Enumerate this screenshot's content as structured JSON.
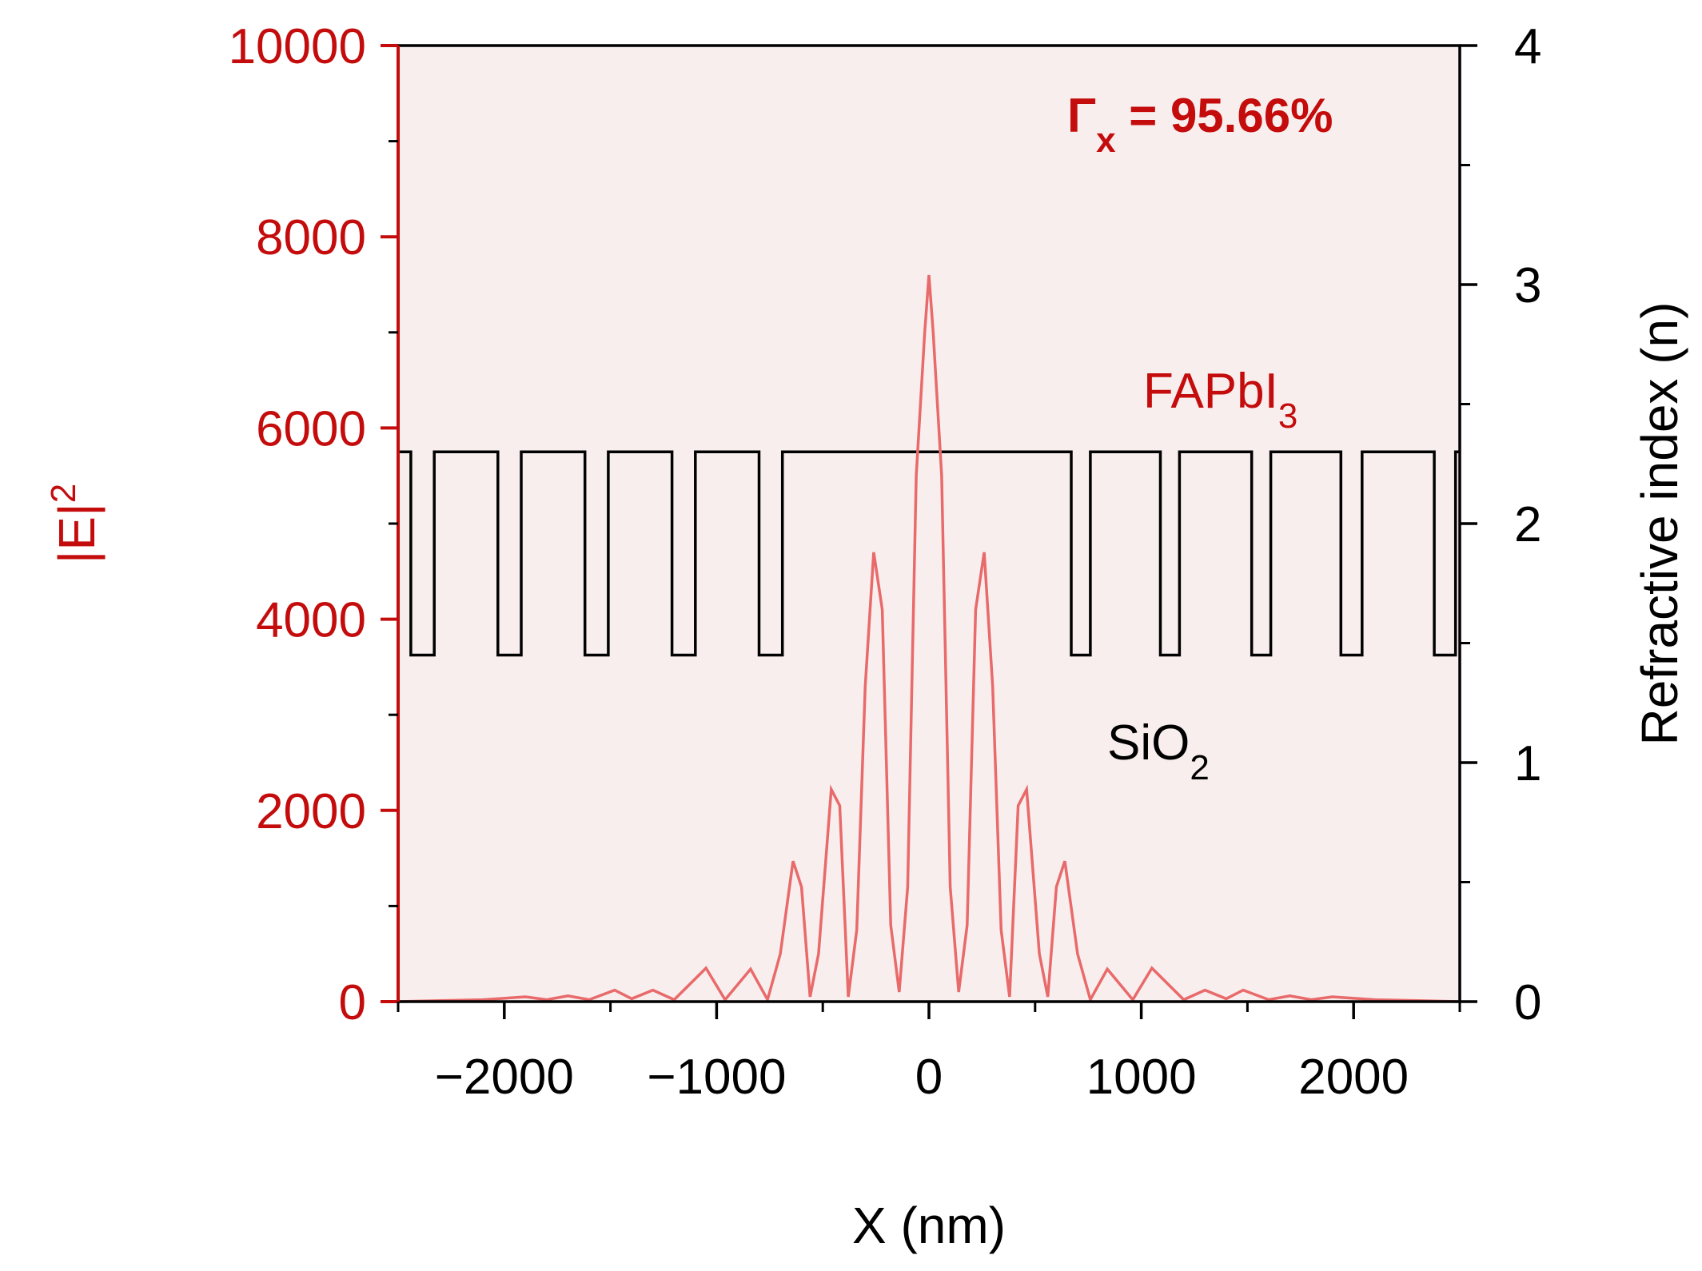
{
  "colors": {
    "left_axis": "#c40c0c",
    "field_curve": "#e86a6a",
    "index_curve": "#000000",
    "fill": "#f9eeee",
    "gamma_text": "#c40c0c"
  },
  "chart_data": {
    "type": "line",
    "xlabel": "X (nm)",
    "ylabel_left": {
      "main": "|E|",
      "sup": "2"
    },
    "ylabel_right": "Refractive index (n)",
    "xlim": [
      -2500,
      2500
    ],
    "ylim_left": [
      0,
      10000
    ],
    "ylim_right": [
      0,
      4
    ],
    "x_ticks": [
      -2000,
      -1000,
      0,
      1000,
      2000
    ],
    "x_tick_labels": [
      "−2000",
      "−1000",
      "0",
      "1000",
      "2000"
    ],
    "x_minor_ticks": [
      -2500,
      -1500,
      -500,
      500,
      1500,
      2500
    ],
    "y_left_ticks": [
      0,
      2000,
      4000,
      6000,
      8000,
      10000
    ],
    "y_left_tick_labels": [
      "0",
      "2000",
      "4000",
      "6000",
      "8000",
      "10000"
    ],
    "y_left_minor_ticks": [
      1000,
      3000,
      5000,
      7000,
      9000
    ],
    "y_right_ticks": [
      0,
      1,
      2,
      3,
      4
    ],
    "y_right_tick_labels": [
      "0",
      "1",
      "2",
      "3",
      "4"
    ],
    "y_right_minor_ticks": [
      0.5,
      1.5,
      2.5,
      3.5
    ],
    "annotations": {
      "gamma": {
        "symbol": "Γ",
        "sub": "x",
        "text": " = 95.66%"
      },
      "fapbi": {
        "main": "FAPbI",
        "sub": "3"
      },
      "sio2": {
        "main": "SiO",
        "sub": "2"
      }
    },
    "series": [
      {
        "axis": "right",
        "points": [
          [
            -2500,
            2.3
          ],
          [
            -2440,
            2.3
          ],
          [
            -2440,
            1.45
          ],
          [
            -2330,
            1.45
          ],
          [
            -2330,
            2.3
          ],
          [
            -2030,
            2.3
          ],
          [
            -2030,
            1.45
          ],
          [
            -1920,
            1.45
          ],
          [
            -1920,
            2.3
          ],
          [
            -1620,
            2.3
          ],
          [
            -1620,
            1.45
          ],
          [
            -1510,
            1.45
          ],
          [
            -1510,
            2.3
          ],
          [
            -1210,
            2.3
          ],
          [
            -1210,
            1.45
          ],
          [
            -1100,
            1.45
          ],
          [
            -1100,
            2.3
          ],
          [
            -800,
            2.3
          ],
          [
            -800,
            1.45
          ],
          [
            -690,
            1.45
          ],
          [
            -690,
            2.3
          ],
          [
            670,
            2.3
          ],
          [
            670,
            1.45
          ],
          [
            760,
            1.45
          ],
          [
            760,
            2.3
          ],
          [
            1090,
            2.3
          ],
          [
            1090,
            1.45
          ],
          [
            1180,
            1.45
          ],
          [
            1180,
            2.3
          ],
          [
            1520,
            2.3
          ],
          [
            1520,
            1.45
          ],
          [
            1610,
            1.45
          ],
          [
            1610,
            2.3
          ],
          [
            1940,
            2.3
          ],
          [
            1940,
            1.45
          ],
          [
            2040,
            1.45
          ],
          [
            2040,
            2.3
          ],
          [
            2380,
            2.3
          ],
          [
            2380,
            1.45
          ],
          [
            2480,
            1.45
          ],
          [
            2480,
            2.3
          ],
          [
            2500,
            2.3
          ]
        ]
      },
      {
        "axis": "left",
        "points": [
          [
            -2500,
            0
          ],
          [
            -2300,
            10
          ],
          [
            -2100,
            20
          ],
          [
            -1900,
            50
          ],
          [
            -1800,
            20
          ],
          [
            -1700,
            60
          ],
          [
            -1600,
            20
          ],
          [
            -1480,
            120
          ],
          [
            -1400,
            30
          ],
          [
            -1300,
            120
          ],
          [
            -1200,
            20
          ],
          [
            -1050,
            350
          ],
          [
            -960,
            20
          ],
          [
            -840,
            340
          ],
          [
            -760,
            20
          ],
          [
            -700,
            500
          ],
          [
            -640,
            1470
          ],
          [
            -600,
            1200
          ],
          [
            -560,
            50
          ],
          [
            -520,
            500
          ],
          [
            -460,
            2220
          ],
          [
            -420,
            2050
          ],
          [
            -380,
            50
          ],
          [
            -340,
            750
          ],
          [
            -300,
            3300
          ],
          [
            -260,
            4700
          ],
          [
            -220,
            4100
          ],
          [
            -180,
            800
          ],
          [
            -140,
            100
          ],
          [
            -100,
            1200
          ],
          [
            -60,
            5500
          ],
          [
            -20,
            7000
          ],
          [
            0,
            7600
          ],
          [
            20,
            7000
          ],
          [
            60,
            5500
          ],
          [
            100,
            1200
          ],
          [
            140,
            100
          ],
          [
            180,
            800
          ],
          [
            220,
            4100
          ],
          [
            260,
            4700
          ],
          [
            300,
            3300
          ],
          [
            340,
            750
          ],
          [
            380,
            50
          ],
          [
            420,
            2050
          ],
          [
            460,
            2220
          ],
          [
            520,
            500
          ],
          [
            560,
            50
          ],
          [
            600,
            1200
          ],
          [
            640,
            1470
          ],
          [
            700,
            500
          ],
          [
            760,
            20
          ],
          [
            840,
            340
          ],
          [
            960,
            20
          ],
          [
            1050,
            350
          ],
          [
            1200,
            20
          ],
          [
            1300,
            120
          ],
          [
            1400,
            30
          ],
          [
            1480,
            120
          ],
          [
            1600,
            20
          ],
          [
            1700,
            60
          ],
          [
            1800,
            20
          ],
          [
            1900,
            50
          ],
          [
            2100,
            20
          ],
          [
            2300,
            10
          ],
          [
            2500,
            0
          ]
        ]
      }
    ]
  }
}
